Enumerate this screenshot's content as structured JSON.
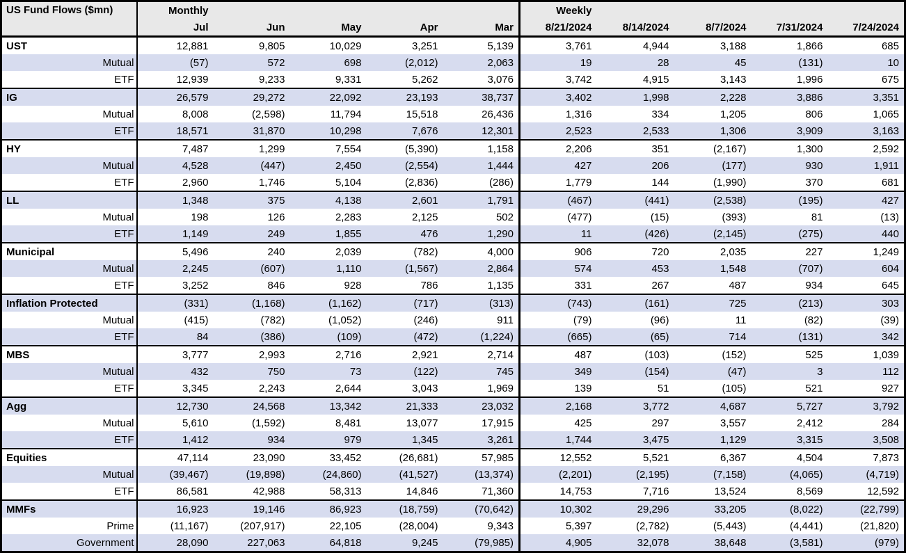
{
  "title": "US Fund Flows ($mn)",
  "chart_data": {
    "type": "table",
    "title": "US Fund Flows ($mn)",
    "sections": {
      "monthly": "Monthly",
      "weekly": "Weekly"
    },
    "monthly_columns": [
      "Jul",
      "Jun",
      "May",
      "Apr",
      "Mar"
    ],
    "weekly_columns": [
      "8/21/2024",
      "8/14/2024",
      "8/7/2024",
      "7/31/2024",
      "7/24/2024"
    ],
    "colors": {
      "band": "#D7DCEF",
      "header_bg": "#E8E8E8",
      "border": "#000000"
    },
    "rows": [
      {
        "label": "UST",
        "type": "group",
        "values": [
          "12,881",
          "9,805",
          "10,029",
          "3,251",
          "5,139",
          "3,761",
          "4,944",
          "3,188",
          "1,866",
          "685"
        ]
      },
      {
        "label": "Mutual",
        "type": "sub",
        "values": [
          "(57)",
          "572",
          "698",
          "(2,012)",
          "2,063",
          "19",
          "28",
          "45",
          "(131)",
          "10"
        ]
      },
      {
        "label": "ETF",
        "type": "sub",
        "values": [
          "12,939",
          "9,233",
          "9,331",
          "5,262",
          "3,076",
          "3,742",
          "4,915",
          "3,143",
          "1,996",
          "675"
        ]
      },
      {
        "label": "IG",
        "type": "group",
        "values": [
          "26,579",
          "29,272",
          "22,092",
          "23,193",
          "38,737",
          "3,402",
          "1,998",
          "2,228",
          "3,886",
          "3,351"
        ]
      },
      {
        "label": "Mutual",
        "type": "sub",
        "values": [
          "8,008",
          "(2,598)",
          "11,794",
          "15,518",
          "26,436",
          "1,316",
          "334",
          "1,205",
          "806",
          "1,065"
        ]
      },
      {
        "label": "ETF",
        "type": "sub",
        "values": [
          "18,571",
          "31,870",
          "10,298",
          "7,676",
          "12,301",
          "2,523",
          "2,533",
          "1,306",
          "3,909",
          "3,163"
        ]
      },
      {
        "label": "HY",
        "type": "group",
        "values": [
          "7,487",
          "1,299",
          "7,554",
          "(5,390)",
          "1,158",
          "2,206",
          "351",
          "(2,167)",
          "1,300",
          "2,592"
        ]
      },
      {
        "label": "Mutual",
        "type": "sub",
        "values": [
          "4,528",
          "(447)",
          "2,450",
          "(2,554)",
          "1,444",
          "427",
          "206",
          "(177)",
          "930",
          "1,911"
        ]
      },
      {
        "label": "ETF",
        "type": "sub",
        "values": [
          "2,960",
          "1,746",
          "5,104",
          "(2,836)",
          "(286)",
          "1,779",
          "144",
          "(1,990)",
          "370",
          "681"
        ]
      },
      {
        "label": "LL",
        "type": "group",
        "values": [
          "1,348",
          "375",
          "4,138",
          "2,601",
          "1,791",
          "(467)",
          "(441)",
          "(2,538)",
          "(195)",
          "427"
        ]
      },
      {
        "label": "Mutual",
        "type": "sub",
        "values": [
          "198",
          "126",
          "2,283",
          "2,125",
          "502",
          "(477)",
          "(15)",
          "(393)",
          "81",
          "(13)"
        ]
      },
      {
        "label": "ETF",
        "type": "sub",
        "values": [
          "1,149",
          "249",
          "1,855",
          "476",
          "1,290",
          "11",
          "(426)",
          "(2,145)",
          "(275)",
          "440"
        ]
      },
      {
        "label": "Municipal",
        "type": "group",
        "values": [
          "5,496",
          "240",
          "2,039",
          "(782)",
          "4,000",
          "906",
          "720",
          "2,035",
          "227",
          "1,249"
        ]
      },
      {
        "label": "Mutual",
        "type": "sub",
        "values": [
          "2,245",
          "(607)",
          "1,110",
          "(1,567)",
          "2,864",
          "574",
          "453",
          "1,548",
          "(707)",
          "604"
        ]
      },
      {
        "label": "ETF",
        "type": "sub",
        "values": [
          "3,252",
          "846",
          "928",
          "786",
          "1,135",
          "331",
          "267",
          "487",
          "934",
          "645"
        ]
      },
      {
        "label": "Inflation Protected",
        "type": "group",
        "values": [
          "(331)",
          "(1,168)",
          "(1,162)",
          "(717)",
          "(313)",
          "(743)",
          "(161)",
          "725",
          "(213)",
          "303"
        ]
      },
      {
        "label": "Mutual",
        "type": "sub",
        "values": [
          "(415)",
          "(782)",
          "(1,052)",
          "(246)",
          "911",
          "(79)",
          "(96)",
          "11",
          "(82)",
          "(39)"
        ]
      },
      {
        "label": "ETF",
        "type": "sub",
        "values": [
          "84",
          "(386)",
          "(109)",
          "(472)",
          "(1,224)",
          "(665)",
          "(65)",
          "714",
          "(131)",
          "342"
        ]
      },
      {
        "label": "MBS",
        "type": "group",
        "values": [
          "3,777",
          "2,993",
          "2,716",
          "2,921",
          "2,714",
          "487",
          "(103)",
          "(152)",
          "525",
          "1,039"
        ]
      },
      {
        "label": "Mutual",
        "type": "sub",
        "values": [
          "432",
          "750",
          "73",
          "(122)",
          "745",
          "349",
          "(154)",
          "(47)",
          "3",
          "112"
        ]
      },
      {
        "label": "ETF",
        "type": "sub",
        "values": [
          "3,345",
          "2,243",
          "2,644",
          "3,043",
          "1,969",
          "139",
          "51",
          "(105)",
          "521",
          "927"
        ]
      },
      {
        "label": "Agg",
        "type": "group",
        "values": [
          "12,730",
          "24,568",
          "13,342",
          "21,333",
          "23,032",
          "2,168",
          "3,772",
          "4,687",
          "5,727",
          "3,792"
        ]
      },
      {
        "label": "Mutual",
        "type": "sub",
        "values": [
          "5,610",
          "(1,592)",
          "8,481",
          "13,077",
          "17,915",
          "425",
          "297",
          "3,557",
          "2,412",
          "284"
        ]
      },
      {
        "label": "ETF",
        "type": "sub",
        "values": [
          "1,412",
          "934",
          "979",
          "1,345",
          "3,261",
          "1,744",
          "3,475",
          "1,129",
          "3,315",
          "3,508"
        ]
      },
      {
        "label": "Equities",
        "type": "group",
        "values": [
          "47,114",
          "23,090",
          "33,452",
          "(26,681)",
          "57,985",
          "12,552",
          "5,521",
          "6,367",
          "4,504",
          "7,873"
        ]
      },
      {
        "label": "Mutual",
        "type": "sub",
        "values": [
          "(39,467)",
          "(19,898)",
          "(24,860)",
          "(41,527)",
          "(13,374)",
          "(2,201)",
          "(2,195)",
          "(7,158)",
          "(4,065)",
          "(4,719)"
        ]
      },
      {
        "label": "ETF",
        "type": "sub",
        "values": [
          "86,581",
          "42,988",
          "58,313",
          "14,846",
          "71,360",
          "14,753",
          "7,716",
          "13,524",
          "8,569",
          "12,592"
        ]
      },
      {
        "label": "MMFs",
        "type": "group",
        "values": [
          "16,923",
          "19,146",
          "86,923",
          "(18,759)",
          "(70,642)",
          "10,302",
          "29,296",
          "33,205",
          "(8,022)",
          "(22,799)"
        ]
      },
      {
        "label": "Prime",
        "type": "sub",
        "values": [
          "(11,167)",
          "(207,917)",
          "22,105",
          "(28,004)",
          "9,343",
          "5,397",
          "(2,782)",
          "(5,443)",
          "(4,441)",
          "(21,820)"
        ]
      },
      {
        "label": "Government",
        "type": "sub",
        "values": [
          "28,090",
          "227,063",
          "64,818",
          "9,245",
          "(79,985)",
          "4,905",
          "32,078",
          "38,648",
          "(3,581)",
          "(979)"
        ]
      }
    ]
  }
}
